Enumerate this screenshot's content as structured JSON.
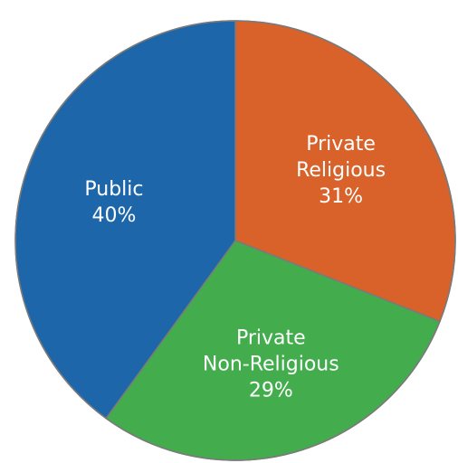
{
  "chart_data": {
    "type": "pie",
    "title": "",
    "slices": [
      {
        "label_lines": [
          "Private",
          "Religious"
        ],
        "value": 31,
        "display": "31%",
        "color": "#D9622B"
      },
      {
        "label_lines": [
          "Private",
          "Non-Religious"
        ],
        "value": 29,
        "display": "29%",
        "color": "#43AD4E"
      },
      {
        "label_lines": [
          "Public"
        ],
        "value": 40,
        "display": "40%",
        "color": "#1C66A9"
      }
    ],
    "start_angle_deg": 0,
    "direction": "clockwise",
    "legend": "none",
    "slice_edge_color": "#7a7a7a"
  }
}
